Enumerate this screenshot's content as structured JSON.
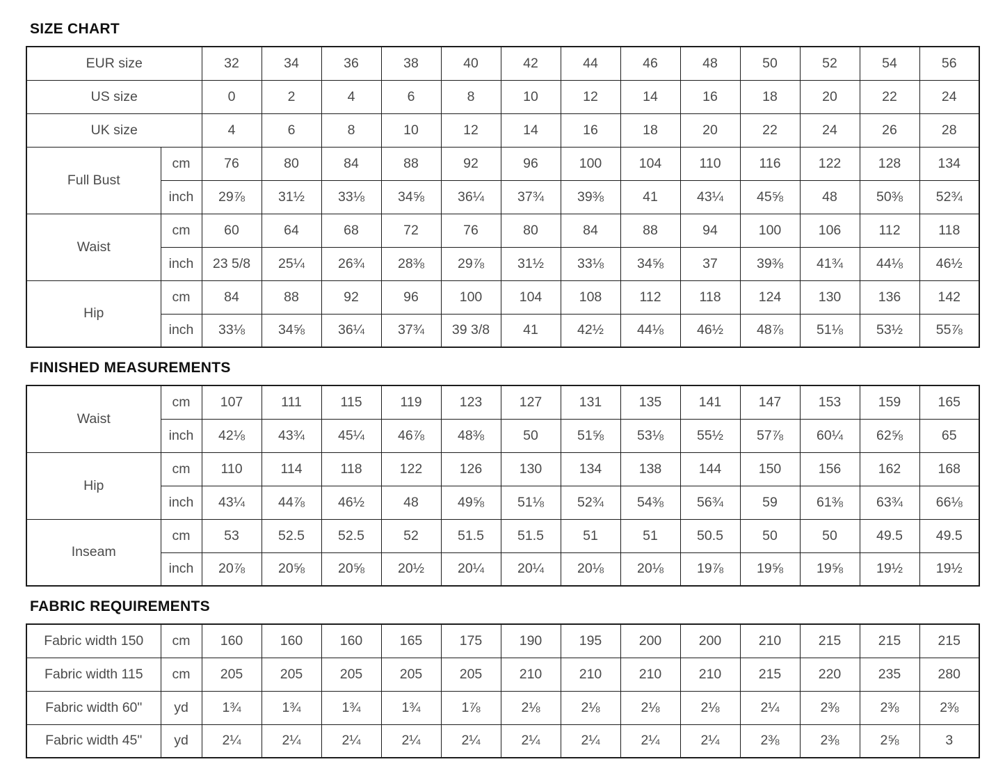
{
  "sections": {
    "size_chart_title": "SIZE CHART",
    "finished_title": "FINISHED MEASUREMENTS",
    "fabric_title": "FABRIC REQUIREMENTS"
  },
  "colors": {
    "border": "#1c1c1c",
    "text": "#4a4a4a",
    "heading": "#111111",
    "background": "#ffffff"
  },
  "tables": {
    "size_chart": {
      "rows": [
        {
          "label": "EUR size",
          "colspan": 2,
          "values": [
            "32",
            "34",
            "36",
            "38",
            "40",
            "42",
            "44",
            "46",
            "48",
            "50",
            "52",
            "54",
            "56"
          ]
        },
        {
          "label": "US size",
          "colspan": 2,
          "values": [
            "0",
            "2",
            "4",
            "6",
            "8",
            "10",
            "12",
            "14",
            "16",
            "18",
            "20",
            "22",
            "24"
          ]
        },
        {
          "label": "UK size",
          "colspan": 2,
          "values": [
            "4",
            "6",
            "8",
            "10",
            "12",
            "14",
            "16",
            "18",
            "20",
            "22",
            "24",
            "26",
            "28"
          ]
        },
        {
          "label": "Full Bust",
          "rowspan": 2,
          "unit": "cm",
          "values": [
            "76",
            "80",
            "84",
            "88",
            "92",
            "96",
            "100",
            "104",
            "110",
            "116",
            "122",
            "128",
            "134"
          ]
        },
        {
          "unit": "inch",
          "values": [
            "29⅞",
            "31½",
            "33⅛",
            "34⅝",
            "36¼",
            "37¾",
            "39⅜",
            "41",
            "43¼",
            "45⅝",
            "48",
            "50⅜",
            "52¾"
          ]
        },
        {
          "label": "Waist",
          "rowspan": 2,
          "unit": "cm",
          "values": [
            "60",
            "64",
            "68",
            "72",
            "76",
            "80",
            "84",
            "88",
            "94",
            "100",
            "106",
            "112",
            "118"
          ]
        },
        {
          "unit": "inch",
          "values": [
            "23 5/8",
            "25¼",
            "26¾",
            "28⅜",
            "29⅞",
            "31½",
            "33⅛",
            "34⅝",
            "37",
            "39⅜",
            "41¾",
            "44⅛",
            "46½"
          ]
        },
        {
          "label": "Hip",
          "rowspan": 2,
          "unit": "cm",
          "values": [
            "84",
            "88",
            "92",
            "96",
            "100",
            "104",
            "108",
            "112",
            "118",
            "124",
            "130",
            "136",
            "142"
          ]
        },
        {
          "unit": "inch",
          "values": [
            "33⅛",
            "34⅝",
            "36¼",
            "37¾",
            "39 3/8",
            "41",
            "42½",
            "44⅛",
            "46½",
            "48⅞",
            "51⅛",
            "53½",
            "55⅞"
          ]
        }
      ]
    },
    "finished": {
      "rows": [
        {
          "label": "Waist",
          "rowspan": 2,
          "unit": "cm",
          "values": [
            "107",
            "111",
            "115",
            "119",
            "123",
            "127",
            "131",
            "135",
            "141",
            "147",
            "153",
            "159",
            "165"
          ]
        },
        {
          "unit": "inch",
          "values": [
            "42⅛",
            "43¾",
            "45¼",
            "46⅞",
            "48⅜",
            "50",
            "51⅝",
            "53⅛",
            "55½",
            "57⅞",
            "60¼",
            "62⅝",
            "65"
          ]
        },
        {
          "label": "Hip",
          "rowspan": 2,
          "unit": "cm",
          "values": [
            "110",
            "114",
            "118",
            "122",
            "126",
            "130",
            "134",
            "138",
            "144",
            "150",
            "156",
            "162",
            "168"
          ]
        },
        {
          "unit": "inch",
          "values": [
            "43¼",
            "44⅞",
            "46½",
            "48",
            "49⅝",
            "51⅛",
            "52¾",
            "54⅜",
            "56¾",
            "59",
            "61⅜",
            "63¾",
            "66⅛"
          ]
        },
        {
          "label": "Inseam",
          "rowspan": 2,
          "unit": "cm",
          "values": [
            "53",
            "52.5",
            "52.5",
            "52",
            "51.5",
            "51.5",
            "51",
            "51",
            "50.5",
            "50",
            "50",
            "49.5",
            "49.5"
          ]
        },
        {
          "unit": "inch",
          "values": [
            "20⅞",
            "20⅝",
            "20⅝",
            "20½",
            "20¼",
            "20¼",
            "20⅛",
            "20⅛",
            "19⅞",
            "19⅝",
            "19⅝",
            "19½",
            "19½"
          ]
        }
      ]
    },
    "fabric": {
      "rows": [
        {
          "label": "Fabric width 150",
          "unit": "cm",
          "values": [
            "160",
            "160",
            "160",
            "165",
            "175",
            "190",
            "195",
            "200",
            "200",
            "210",
            "215",
            "215",
            "215"
          ]
        },
        {
          "label": "Fabric width 115",
          "unit": "cm",
          "values": [
            "205",
            "205",
            "205",
            "205",
            "205",
            "210",
            "210",
            "210",
            "210",
            "215",
            "220",
            "235",
            "280"
          ]
        },
        {
          "label": "Fabric width 60\"",
          "unit": "yd",
          "values": [
            "1¾",
            "1¾",
            "1¾",
            "1¾",
            "1⅞",
            "2⅛",
            "2⅛",
            "2⅛",
            "2⅛",
            "2¼",
            "2⅜",
            "2⅜",
            "2⅜"
          ]
        },
        {
          "label": "Fabric width 45\"",
          "unit": "yd",
          "values": [
            "2¼",
            "2¼",
            "2¼",
            "2¼",
            "2¼",
            "2¼",
            "2¼",
            "2¼",
            "2¼",
            "2⅜",
            "2⅜",
            "2⅝",
            "3"
          ]
        }
      ]
    }
  }
}
